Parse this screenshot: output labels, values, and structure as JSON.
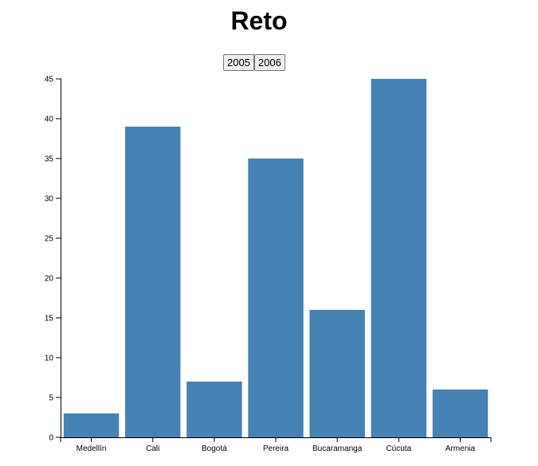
{
  "page": {
    "title": "Reto"
  },
  "controls": {
    "buttons": [
      {
        "label": "2005"
      },
      {
        "label": "2006"
      }
    ]
  },
  "colors": {
    "bar": "#4682b4",
    "axis": "#000000"
  },
  "chart_data": {
    "type": "bar",
    "title": "",
    "xlabel": "",
    "ylabel": "",
    "categories": [
      "Medellín",
      "Cali",
      "Bogotá",
      "Pereira",
      "Bucaramanga",
      "Cúcuta",
      "Armenia"
    ],
    "values": [
      3,
      39,
      7,
      35,
      16,
      45,
      6
    ],
    "ylim": [
      0,
      45
    ],
    "yticks": [
      0,
      5,
      10,
      15,
      20,
      25,
      30,
      35,
      40,
      45
    ],
    "grid": false,
    "legend": "none"
  }
}
